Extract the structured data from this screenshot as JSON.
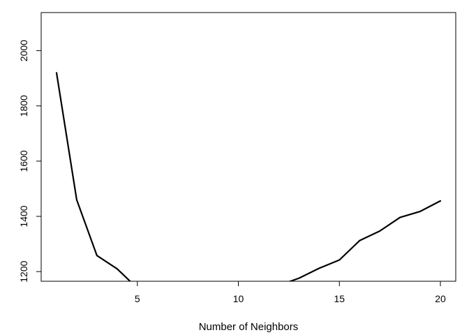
{
  "chart_data": {
    "type": "line",
    "title": "",
    "xlabel": "Number of Neighbors",
    "ylabel": "",
    "xlim": [
      0.24,
      20.76
    ],
    "ylim": [
      1165,
      2138
    ],
    "x_ticks": [
      5,
      10,
      15,
      20
    ],
    "y_ticks": [
      1200,
      1400,
      1600,
      1800,
      2000
    ],
    "grid": false,
    "legend": "none",
    "series": [
      {
        "x": [
          1,
          2,
          3,
          4,
          5,
          6,
          7,
          8,
          9,
          10,
          11,
          12,
          13,
          14,
          15,
          16,
          17,
          18,
          19,
          20
        ],
        "y": [
          1920,
          1460,
          1258,
          1210,
          1140,
          1163,
          1150,
          1145,
          1140,
          1138,
          1140,
          1150,
          1176,
          1212,
          1242,
          1312,
          1347,
          1396,
          1418,
          1456
        ],
        "color": "#000000"
      }
    ]
  }
}
